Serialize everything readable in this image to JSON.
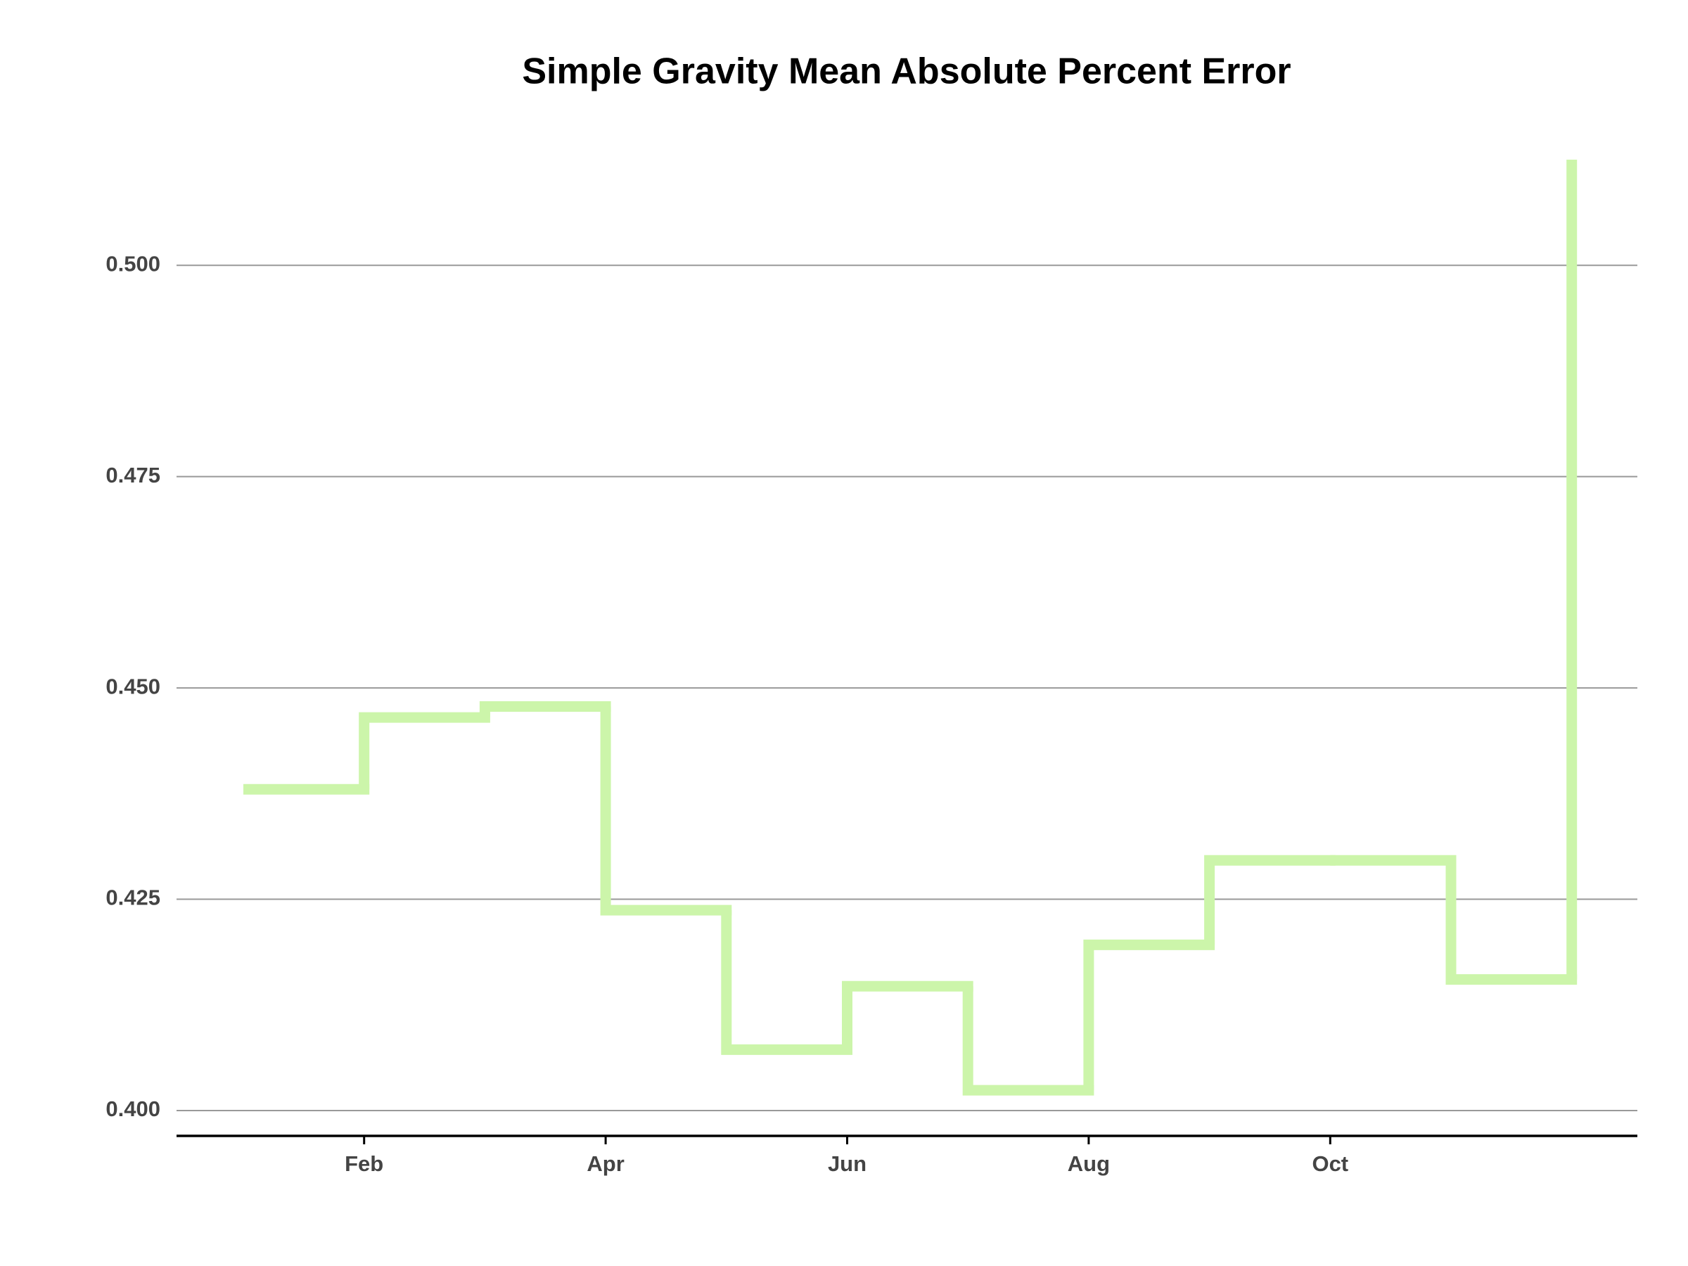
{
  "chart_data": {
    "type": "step",
    "title": "Simple Gravity Mean Absolute Percent Error",
    "categories": [
      null,
      "Feb",
      null,
      "Apr",
      null,
      "Jun",
      null,
      "Aug",
      null,
      "Oct",
      null,
      null
    ],
    "values": [
      0.438,
      0.4465,
      0.4478,
      0.4237,
      0.4072,
      0.4147,
      0.4024,
      0.4196,
      0.4296,
      0.4296,
      0.4155,
      0.5125
    ],
    "color": "#ccf5aa",
    "ylim": [
      0.397,
      0.513
    ],
    "yticks": [
      {
        "value": 0.4,
        "label": "0.400"
      },
      {
        "value": 0.425,
        "label": "0.425"
      },
      {
        "value": 0.45,
        "label": "0.450"
      },
      {
        "value": 0.475,
        "label": "0.475"
      },
      {
        "value": 0.5,
        "label": "0.500"
      }
    ],
    "grid": true
  }
}
